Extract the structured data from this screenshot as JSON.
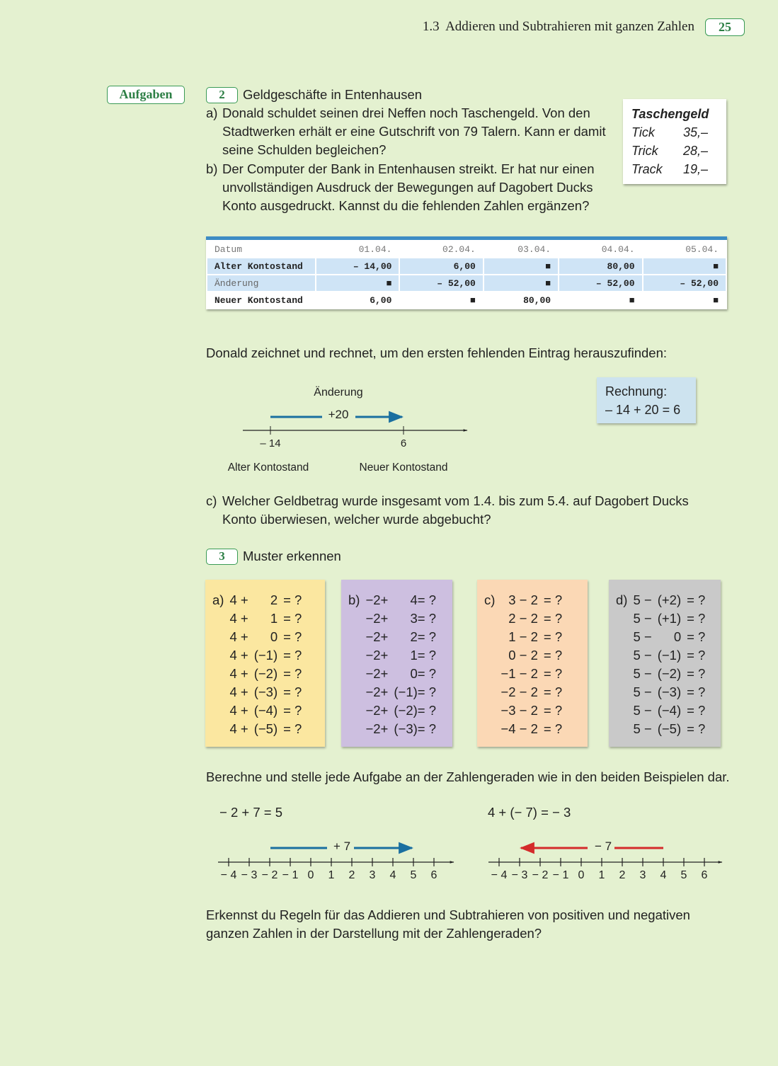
{
  "header": {
    "section": "1.3  Addieren und Subtrahieren mit ganzen Zahlen",
    "page": "25"
  },
  "sidebar": {
    "label": "Aufgaben"
  },
  "task2": {
    "number": "2",
    "title": "Geldgeschäfte in Entenhausen",
    "a": {
      "marker": "a)",
      "text": "Donald schuldet seinen drei Neffen noch Taschengeld. Von den Stadtwerken erhält er eine Gutschrift von 79 Talern. Kann er damit seine Schulden begleichen?"
    },
    "b": {
      "marker": "b)",
      "text": "Der Computer der Bank in Entenhausen streikt. Er hat nur einen unvollständigen Ausdruck der Bewegungen auf Dagobert Ducks Konto ausgedruckt. Kannst du die fehlenden Zahlen ergänzen?"
    },
    "pocket_money": {
      "title": "Taschengeld",
      "rows": [
        [
          "Tick",
          "35,–"
        ],
        [
          "Trick",
          "28,–"
        ],
        [
          "Track",
          "19,–"
        ]
      ]
    },
    "table": {
      "header": [
        "Datum",
        "01.04.",
        "02.04.",
        "03.04.",
        "04.04.",
        "05.04."
      ],
      "rows": [
        [
          "Alter Kontostand",
          "– 14,00",
          "6,00",
          "■",
          "80,00",
          "■"
        ],
        [
          "Änderung",
          "■",
          "– 52,00",
          "■",
          "– 52,00",
          "– 52,00"
        ],
        [
          "Neuer Kontostand",
          "6,00",
          "■",
          "80,00",
          "■",
          "■"
        ]
      ]
    },
    "intro": "Donald zeichnet und rechnet, um den ersten fehlenden Eintrag herauszufinden:",
    "diagram": {
      "change_label": "Änderung",
      "change": "+20",
      "start": "– 14",
      "end": "6",
      "start_caption": "Alter Kontostand",
      "end_caption": "Neuer Kontostand"
    },
    "calculation": {
      "title": "Rechnung:",
      "expression": "– 14 + 20 = 6"
    },
    "c": {
      "marker": "c)",
      "text": "Welcher Geldbetrag wurde insgesamt vom 1.4. bis zum 5.4. auf Dagobert Ducks Konto überwiesen, welcher wurde abgebucht?"
    }
  },
  "task3": {
    "number": "3",
    "title": "Muster erkennen",
    "cards": [
      {
        "label": "a)",
        "rows": [
          [
            "4 +",
            "2",
            "= ?"
          ],
          [
            "4 +",
            "1",
            "= ?"
          ],
          [
            "4 +",
            "0",
            "= ?"
          ],
          [
            "4 +",
            "(−1)",
            "= ?"
          ],
          [
            "4 +",
            "(−2)",
            "= ?"
          ],
          [
            "4 +",
            "(−3)",
            "= ?"
          ],
          [
            "4 +",
            "(−4)",
            "= ?"
          ],
          [
            "4 +",
            "(−5)",
            "= ?"
          ]
        ]
      },
      {
        "label": "b)",
        "rows": [
          [
            "−2+",
            "4= ?"
          ],
          [
            "−2+",
            "3= ?"
          ],
          [
            "−2+",
            "2= ?"
          ],
          [
            "−2+",
            "1= ?"
          ],
          [
            "−2+",
            "0= ?"
          ],
          [
            "−2+",
            "(−1)= ?"
          ],
          [
            "−2+",
            "(−2)= ?"
          ],
          [
            "−2+",
            "(−3)= ?"
          ]
        ]
      },
      {
        "label": "c)",
        "rows": [
          [
            "3 − 2",
            "= ?"
          ],
          [
            "2 − 2",
            "= ?"
          ],
          [
            "1 − 2",
            "= ?"
          ],
          [
            "0 − 2",
            "= ?"
          ],
          [
            "−1 − 2",
            "= ?"
          ],
          [
            "−2 − 2",
            "= ?"
          ],
          [
            "−3 − 2",
            "= ?"
          ],
          [
            "−4 − 2",
            "= ?"
          ]
        ]
      },
      {
        "label": "d)",
        "rows": [
          [
            "5 −",
            "(+2)",
            "= ?"
          ],
          [
            "5 −",
            "(+1)",
            "= ?"
          ],
          [
            "5 −",
            "0",
            "= ?"
          ],
          [
            "5 −",
            "(−1)",
            "= ?"
          ],
          [
            "5 −",
            "(−2)",
            "= ?"
          ],
          [
            "5 −",
            "(−3)",
            "= ?"
          ],
          [
            "5 −",
            "(−4)",
            "= ?"
          ],
          [
            "5 −",
            "(−5)",
            "= ?"
          ]
        ]
      }
    ],
    "instruction": "Berechne und stelle jede Aufgabe an der Zahlengeraden wie in den beiden Beispielen dar.",
    "examples": [
      {
        "equation": "− 2 + 7 = 5",
        "change": "+ 7",
        "ticks": [
          "− 4",
          "− 3",
          "− 2",
          "− 1",
          "0",
          "1",
          "2",
          "3",
          "4",
          "5",
          "6"
        ]
      },
      {
        "equation": "4 + (− 7) = − 3",
        "change": "− 7",
        "ticks": [
          "− 4",
          "− 3",
          "− 2",
          "− 1",
          "0",
          "1",
          "2",
          "3",
          "4",
          "5",
          "6"
        ]
      }
    ],
    "question": "Erkennst du Regeln für das Addieren und Subtrahieren von positiven und negativen ganzen Zahlen in der Darstellung mit der Zahlengeraden?"
  }
}
